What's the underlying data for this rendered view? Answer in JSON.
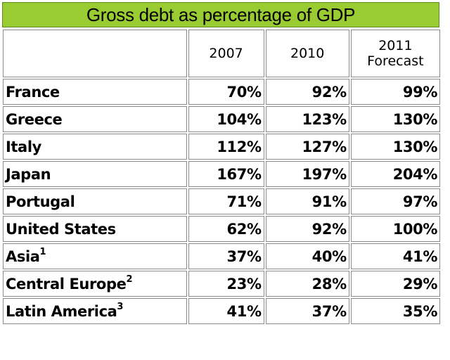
{
  "title": "Gross debt as percentage of GDP",
  "columns": [
    "2007",
    "2010",
    "2011 Forecast"
  ],
  "rows": [
    {
      "country": "France",
      "sup": "",
      "values": [
        "70%",
        "92%",
        "99%"
      ]
    },
    {
      "country": "Greece",
      "sup": "",
      "values": [
        "104%",
        "123%",
        "130%"
      ]
    },
    {
      "country": "Italy",
      "sup": "",
      "values": [
        "112%",
        "127%",
        "130%"
      ]
    },
    {
      "country": "Japan",
      "sup": "",
      "values": [
        "167%",
        "197%",
        "204%"
      ]
    },
    {
      "country": "Portugal",
      "sup": "",
      "values": [
        "71%",
        "91%",
        "97%"
      ]
    },
    {
      "country": "United States",
      "sup": "",
      "values": [
        "62%",
        "92%",
        "100%"
      ]
    },
    {
      "country": "Asia",
      "sup": "1",
      "values": [
        "37%",
        "40%",
        "41%"
      ]
    },
    {
      "country": "Central Europe",
      "sup": "2",
      "values": [
        "23%",
        "28%",
        "29%"
      ]
    },
    {
      "country": "Latin America",
      "sup": "3",
      "values": [
        "41%",
        "37%",
        "35%"
      ]
    }
  ],
  "colors": {
    "title_background": "#99cc33",
    "cell_border": "#8a8a8a",
    "text": "#000000"
  }
}
